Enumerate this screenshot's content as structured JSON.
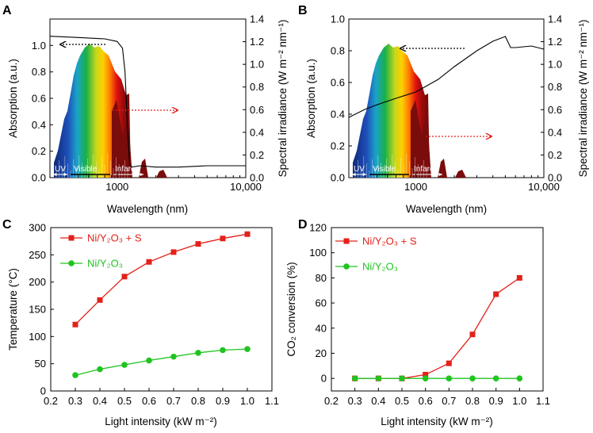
{
  "panels": {
    "A": {
      "letter": "A"
    },
    "B": {
      "letter": "B"
    },
    "C": {
      "letter": "C"
    },
    "D": {
      "letter": "D"
    }
  },
  "band_labels": {
    "uv": "UV",
    "visible": "Visible",
    "infrared": "Infared"
  },
  "colors": {
    "red": "#e32119",
    "green": "#1fc41f",
    "ir_dark": "#7a0c0c",
    "uv_blue": "#1a3a9c"
  },
  "chart_data": [
    {
      "id": "A",
      "type": "line",
      "title": "",
      "xlabel": "Wavelength (nm)",
      "ylabel": "Absorption (a.u.)",
      "y2label": "Spectral irradiance (W m⁻² nm⁻¹)",
      "xscale": "log",
      "xlim": [
        300,
        10000
      ],
      "ylim": [
        0,
        1.2
      ],
      "y2lim": [
        0,
        1.4
      ],
      "xticks": [
        "1000",
        "10,000"
      ],
      "yticks": [
        "0.0",
        "0.2",
        "0.4",
        "0.6",
        "0.8",
        "1.0"
      ],
      "y2ticks": [
        "0.0",
        "0.2",
        "0.4",
        "0.6",
        "0.8",
        "1.0",
        "1.2",
        "1.4"
      ],
      "series": [
        {
          "name": "Absorption",
          "x": [
            300,
            500,
            800,
            1000,
            1100,
            1150,
            1200,
            1250,
            1300,
            1500,
            2000,
            3000,
            5000,
            10000
          ],
          "values": [
            1.07,
            1.06,
            1.05,
            1.03,
            0.98,
            0.8,
            0.4,
            0.1,
            0.08,
            0.09,
            0.08,
            0.08,
            0.09,
            0.09
          ]
        }
      ]
    },
    {
      "id": "B",
      "type": "line",
      "title": "",
      "xlabel": "Wavelength (nm)",
      "ylabel": "Absorption (a.u.)",
      "y2label": "Spectral irradiance (W m⁻² nm⁻¹)",
      "xscale": "log",
      "xlim": [
        300,
        10000
      ],
      "ylim": [
        0,
        1.0
      ],
      "y2lim": [
        0,
        1.4
      ],
      "xticks": [
        "1000",
        "10,000"
      ],
      "yticks": [
        "0.0",
        "0.2",
        "0.4",
        "0.6",
        "0.8",
        "1.0"
      ],
      "y2ticks": [
        "0.0",
        "0.2",
        "0.4",
        "0.6",
        "0.8",
        "1.0",
        "1.2",
        "1.4"
      ],
      "series": [
        {
          "name": "Absorption",
          "x": [
            300,
            400,
            500,
            700,
            1000,
            1500,
            2000,
            3000,
            4000,
            5000,
            5500,
            6000,
            8000,
            10000
          ],
          "values": [
            0.38,
            0.43,
            0.46,
            0.5,
            0.54,
            0.62,
            0.7,
            0.8,
            0.86,
            0.89,
            0.82,
            0.82,
            0.83,
            0.81
          ]
        }
      ]
    },
    {
      "id": "C",
      "type": "line",
      "title": "",
      "xlabel": "Light intensity (kW m⁻²)",
      "ylabel": "Temperature (°C)",
      "xlim": [
        0.2,
        1.1
      ],
      "ylim": [
        0,
        300
      ],
      "xticks": [
        "0.2",
        "0.3",
        "0.4",
        "0.5",
        "0.6",
        "0.7",
        "0.8",
        "0.9",
        "1.0",
        "1.1"
      ],
      "yticks": [
        "0",
        "50",
        "100",
        "150",
        "200",
        "250",
        "300"
      ],
      "x": [
        0.3,
        0.4,
        0.5,
        0.6,
        0.7,
        0.8,
        0.9,
        1.0
      ],
      "series": [
        {
          "name": "Ni/Y₂O₃ + S",
          "marker": "square",
          "color": "#e32119",
          "values": [
            122,
            167,
            210,
            237,
            255,
            270,
            280,
            288
          ]
        },
        {
          "name": "Ni/Y₂O₃",
          "marker": "circle",
          "color": "#1fc41f",
          "values": [
            29,
            40,
            48,
            56,
            63,
            70,
            75,
            77
          ]
        }
      ]
    },
    {
      "id": "D",
      "type": "line",
      "title": "",
      "xlabel": "Light intensity (kW m⁻²)",
      "ylabel": "CO₂ conversion (%)",
      "xlim": [
        0.2,
        1.1
      ],
      "ylim": [
        -10,
        120
      ],
      "xticks": [
        "0.2",
        "0.3",
        "0.4",
        "0.5",
        "0.6",
        "0.7",
        "0.8",
        "0.9",
        "1.0",
        "1.1"
      ],
      "yticks": [
        "0",
        "20",
        "40",
        "60",
        "80",
        "100",
        "120"
      ],
      "x": [
        0.3,
        0.4,
        0.5,
        0.6,
        0.7,
        0.8,
        0.9,
        1.0
      ],
      "series": [
        {
          "name": "Ni/Y₂O₃ + S",
          "marker": "square",
          "color": "#e32119",
          "values": [
            0,
            0,
            0,
            3,
            12,
            35,
            67,
            80
          ]
        },
        {
          "name": "Ni/Y₂O₃",
          "marker": "circle",
          "color": "#1fc41f",
          "values": [
            0,
            0,
            0,
            0,
            0,
            0,
            0,
            0
          ]
        }
      ]
    }
  ]
}
